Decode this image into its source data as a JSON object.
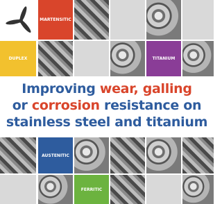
{
  "tiles": {
    "martensitic": "MARTENSITIC",
    "duplex": "DUPLEX",
    "titanium": "TITANIUM",
    "austenitic": "AUSTENITIC",
    "ferritic": "FERRITIC"
  },
  "headline": [
    [
      "Improving ",
      "wear, galling"
    ],
    [
      "or ",
      "corrosion",
      " resistance on"
    ],
    [
      "stainless steel and titanium"
    ]
  ]
}
